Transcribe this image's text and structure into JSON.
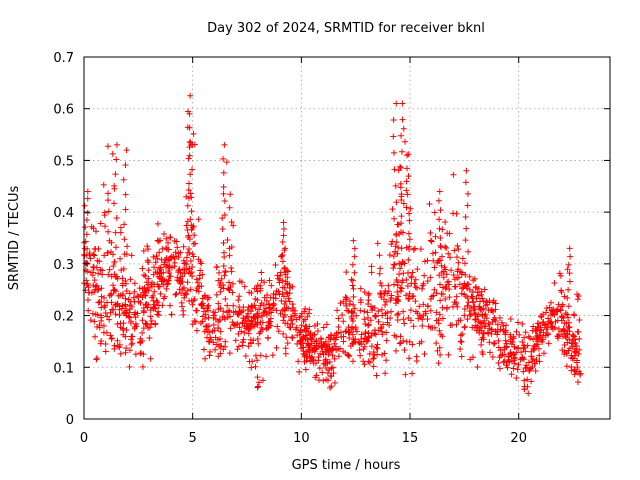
{
  "chart_data": {
    "type": "scatter",
    "title": "Day 302 of 2024, SRMTID for receiver bknl",
    "xlabel": "GPS time / hours",
    "ylabel": "SRMTID / TECUs",
    "xlim": [
      0,
      24.2
    ],
    "ylim": [
      0,
      0.7
    ],
    "x_ticks": [
      0,
      5,
      10,
      15,
      20
    ],
    "y_ticks": [
      0,
      0.1,
      0.2,
      0.3,
      0.4,
      0.5,
      0.6,
      0.7
    ],
    "x_tick_labels": [
      "0",
      "5",
      "10",
      "15",
      "20"
    ],
    "y_tick_labels": [
      "0",
      "0.1",
      "0.2",
      "0.3",
      "0.4",
      "0.5",
      "0.6",
      "0.7"
    ],
    "grid": true,
    "marker": "+",
    "color": "#ff0000",
    "x_data_range": [
      0,
      22.8
    ],
    "envelope": {
      "description": "approximate min/median/max of SRMTID per half-hour bin, red + markers",
      "x": [
        0.0,
        0.5,
        1.0,
        1.5,
        2.0,
        2.5,
        3.0,
        3.5,
        4.0,
        4.5,
        5.0,
        5.5,
        6.0,
        6.5,
        7.0,
        7.5,
        8.0,
        8.5,
        9.0,
        9.5,
        10.0,
        10.5,
        11.0,
        11.5,
        12.0,
        12.5,
        13.0,
        13.5,
        14.0,
        14.5,
        15.0,
        15.5,
        16.0,
        16.5,
        17.0,
        17.5,
        18.0,
        18.5,
        19.0,
        19.5,
        20.0,
        20.5,
        21.0,
        21.5,
        22.0,
        22.5
      ],
      "min": [
        0.2,
        0.1,
        0.12,
        0.14,
        0.1,
        0.1,
        0.1,
        0.2,
        0.2,
        0.2,
        0.14,
        0.11,
        0.11,
        0.14,
        0.11,
        0.12,
        0.06,
        0.1,
        0.12,
        0.11,
        0.08,
        0.08,
        0.07,
        0.06,
        0.09,
        0.09,
        0.08,
        0.07,
        0.09,
        0.08,
        0.09,
        0.08,
        0.08,
        0.09,
        0.1,
        0.12,
        0.1,
        0.1,
        0.08,
        0.07,
        0.06,
        0.05,
        0.1,
        0.15,
        0.12,
        0.07
      ],
      "mid": [
        0.3,
        0.24,
        0.21,
        0.22,
        0.2,
        0.19,
        0.22,
        0.28,
        0.3,
        0.27,
        0.3,
        0.22,
        0.16,
        0.24,
        0.2,
        0.18,
        0.2,
        0.21,
        0.25,
        0.23,
        0.15,
        0.14,
        0.14,
        0.13,
        0.19,
        0.17,
        0.15,
        0.18,
        0.23,
        0.28,
        0.22,
        0.22,
        0.25,
        0.24,
        0.27,
        0.24,
        0.21,
        0.2,
        0.19,
        0.14,
        0.13,
        0.11,
        0.16,
        0.2,
        0.19,
        0.13
      ],
      "max": [
        0.44,
        0.36,
        0.53,
        0.53,
        0.33,
        0.3,
        0.35,
        0.4,
        0.37,
        0.33,
        0.63,
        0.3,
        0.28,
        0.53,
        0.33,
        0.24,
        0.29,
        0.28,
        0.38,
        0.31,
        0.24,
        0.22,
        0.19,
        0.18,
        0.35,
        0.24,
        0.27,
        0.36,
        0.33,
        0.61,
        0.51,
        0.34,
        0.44,
        0.37,
        0.48,
        0.3,
        0.27,
        0.25,
        0.22,
        0.2,
        0.19,
        0.18,
        0.24,
        0.26,
        0.33,
        0.25
      ]
    },
    "peaks": [
      {
        "x": 0.1,
        "y": 0.44
      },
      {
        "x": 1.45,
        "y": 0.53
      },
      {
        "x": 1.9,
        "y": 0.52
      },
      {
        "x": 4.85,
        "y": 0.625
      },
      {
        "x": 4.9,
        "y": 0.59
      },
      {
        "x": 6.45,
        "y": 0.53
      },
      {
        "x": 9.2,
        "y": 0.38
      },
      {
        "x": 12.4,
        "y": 0.345
      },
      {
        "x": 14.3,
        "y": 0.61
      },
      {
        "x": 14.6,
        "y": 0.61
      },
      {
        "x": 14.9,
        "y": 0.51
      },
      {
        "x": 16.4,
        "y": 0.44
      },
      {
        "x": 17.6,
        "y": 0.48
      },
      {
        "x": 22.3,
        "y": 0.33
      }
    ],
    "troughs": [
      {
        "x": 8.1,
        "y": 0.06
      },
      {
        "x": 11.4,
        "y": 0.055
      },
      {
        "x": 20.4,
        "y": 0.045
      },
      {
        "x": 22.75,
        "y": 0.065
      }
    ]
  }
}
